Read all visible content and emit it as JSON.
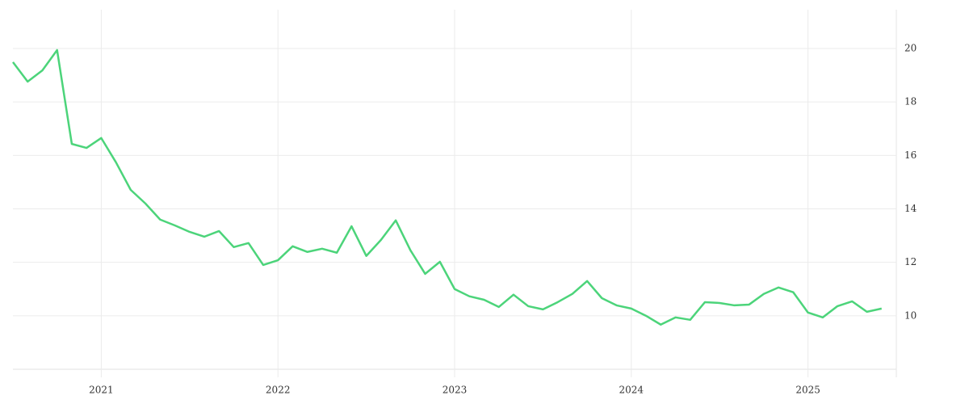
{
  "chart_data": {
    "type": "line",
    "x": [
      2020.5,
      2020.5833,
      2020.6667,
      2020.75,
      2020.8333,
      2020.9167,
      2021.0,
      2021.0833,
      2021.1667,
      2021.25,
      2021.3333,
      2021.4167,
      2021.5,
      2021.5833,
      2021.6667,
      2021.75,
      2021.8333,
      2021.9167,
      2022.0,
      2022.0833,
      2022.1667,
      2022.25,
      2022.3333,
      2022.4167,
      2022.5,
      2022.5833,
      2022.6667,
      2022.75,
      2022.8333,
      2022.9167,
      2023.0,
      2023.0833,
      2023.1667,
      2023.25,
      2023.3333,
      2023.4167,
      2023.5,
      2023.5833,
      2023.6667,
      2023.75,
      2023.8333,
      2023.9167,
      2024.0,
      2024.0833,
      2024.1667,
      2024.25,
      2024.3333,
      2024.4167,
      2024.5,
      2024.5833,
      2024.6667,
      2024.75,
      2024.8333,
      2024.9167,
      2025.0,
      2025.0833,
      2025.1667,
      2025.25,
      2025.3333,
      2025.4167
    ],
    "values": [
      19.49,
      18.76,
      19.18,
      19.94,
      16.43,
      16.28,
      16.65,
      15.74,
      14.71,
      14.2,
      13.6,
      13.38,
      13.14,
      12.96,
      13.17,
      12.57,
      12.72,
      11.9,
      12.08,
      12.6,
      12.39,
      12.51,
      12.36,
      13.35,
      12.24,
      12.84,
      13.57,
      12.45,
      11.57,
      12.02,
      11.0,
      10.73,
      10.6,
      10.33,
      10.79,
      10.36,
      10.24,
      10.51,
      10.82,
      11.3,
      10.66,
      10.39,
      10.27,
      10.0,
      9.67,
      9.94,
      9.85,
      10.51,
      10.48,
      10.39,
      10.42,
      10.82,
      11.06,
      10.88,
      10.12,
      9.94,
      10.36,
      10.54,
      10.15,
      10.27
    ],
    "color": "#4cd47a",
    "xlim": [
      2020.5,
      2025.5
    ],
    "xticks": [
      2021,
      2022,
      2023,
      2024,
      2025
    ],
    "ylim": [
      8,
      21.4
    ],
    "yticks": [
      10,
      12,
      14,
      16,
      18,
      20
    ],
    "grid": true
  }
}
